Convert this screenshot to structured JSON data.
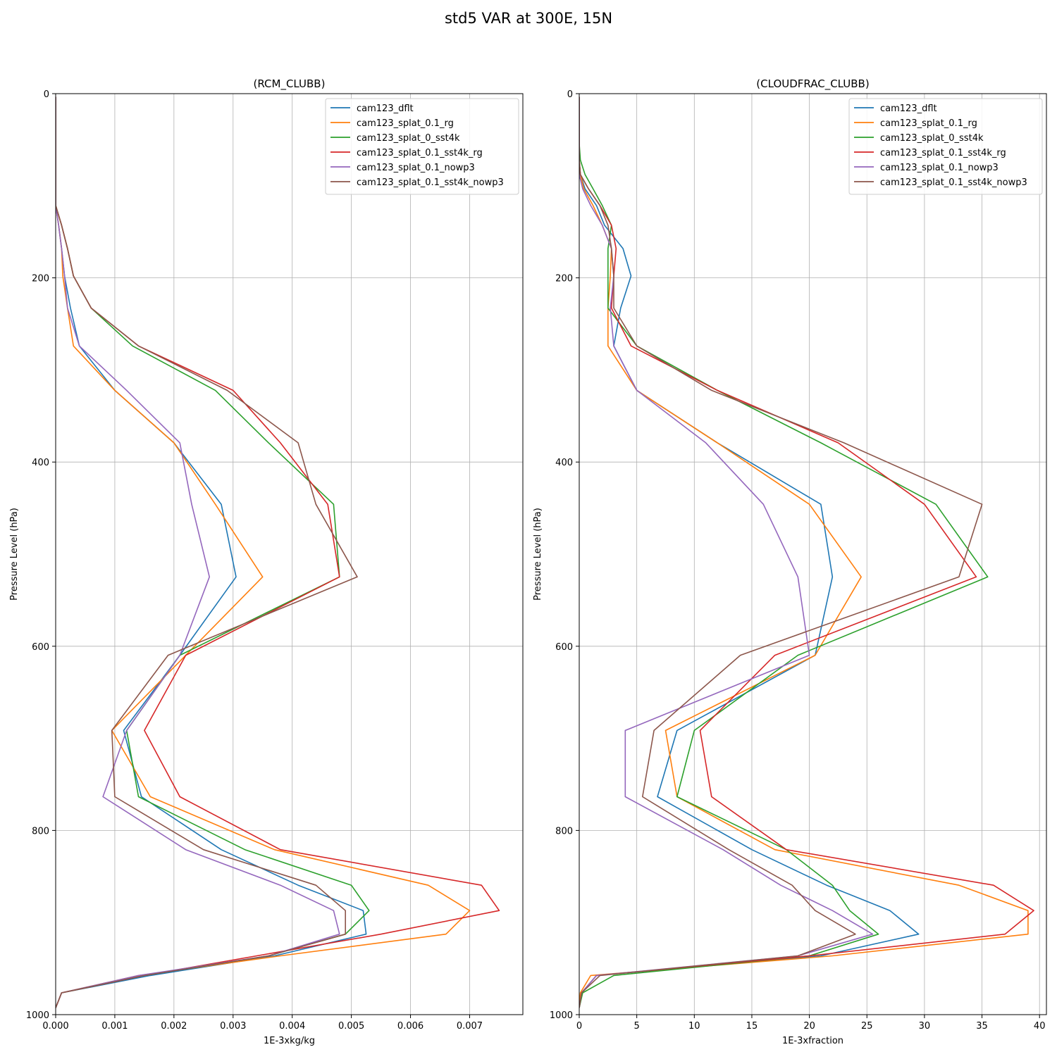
{
  "figure": {
    "title": "std5 VAR at 300E, 15N"
  },
  "colors": [
    "#1f77b4",
    "#ff7f0e",
    "#2ca02c",
    "#d62728",
    "#9467bd",
    "#8c564b"
  ],
  "chart_data": [
    {
      "type": "line",
      "title": "(RCM_CLUBB)",
      "xlabel": "1E-3xkg/kg",
      "ylabel": "Pressure Level (hPa)",
      "xlim": [
        0,
        0.0079
      ],
      "ylim": [
        1000,
        0
      ],
      "xticks": [
        0,
        0.001,
        0.002,
        0.003,
        0.004,
        0.005,
        0.006,
        0.007
      ],
      "xtick_labels": [
        "0.000",
        "0.001",
        "0.002",
        "0.003",
        "0.004",
        "0.005",
        "0.006",
        "0.007"
      ],
      "yticks": [
        0,
        200,
        400,
        600,
        800,
        1000
      ],
      "ytick_labels": [
        "0",
        "200",
        "400",
        "600",
        "800",
        "1000"
      ],
      "grid": true,
      "legend": "top-right",
      "pressure_levels": [
        3.6,
        7.6,
        14.4,
        24.6,
        38.3,
        54.6,
        72.0,
        87.8,
        103.3,
        121.5,
        142.9,
        168.2,
        197.9,
        232.8,
        273.9,
        322.2,
        379.1,
        445.9,
        524.7,
        609.8,
        691.4,
        763.4,
        820.9,
        859.5,
        887.0,
        912.6,
        936.2,
        957.5,
        976.3,
        992.6
      ],
      "series": [
        {
          "name": "cam123_dflt",
          "values": [
            0,
            0,
            0,
            0,
            0,
            0,
            0,
            0,
            0,
            0,
            5e-05,
            0.0001,
            0.00015,
            0.00025,
            0.0004,
            0.001,
            0.002,
            0.0028,
            0.00305,
            0.0021,
            0.00115,
            0.00145,
            0.0028,
            0.0041,
            0.0052,
            0.00525,
            0.0037,
            0.0016,
            0.0001,
            0
          ]
        },
        {
          "name": "cam123_splat_0.1_rg",
          "values": [
            0,
            0,
            0,
            0,
            0,
            0,
            0,
            0,
            0,
            0,
            5e-05,
            0.0001,
            0.00012,
            0.0002,
            0.0003,
            0.001,
            0.002,
            0.0027,
            0.0035,
            0.0022,
            0.00095,
            0.0016,
            0.0037,
            0.0063,
            0.007,
            0.0066,
            0.0038,
            0.0014,
            0.0001,
            0
          ]
        },
        {
          "name": "cam123_splat_0_sst4k",
          "values": [
            0,
            0,
            0,
            0,
            0,
            0,
            0,
            0,
            0,
            0,
            0.0001,
            0.0002,
            0.0003,
            0.0006,
            0.0013,
            0.0027,
            0.0036,
            0.0047,
            0.0048,
            0.0021,
            0.0012,
            0.0014,
            0.0032,
            0.005,
            0.0053,
            0.0049,
            0.0036,
            0.0015,
            0.0001,
            0
          ]
        },
        {
          "name": "cam123_splat_0.1_sst4k_rg",
          "values": [
            0,
            0,
            0,
            0,
            0,
            0,
            0,
            0,
            0,
            0,
            0.0001,
            0.0002,
            0.0003,
            0.0006,
            0.0014,
            0.003,
            0.0038,
            0.0046,
            0.0048,
            0.0022,
            0.0015,
            0.0021,
            0.0038,
            0.0072,
            0.0075,
            0.0055,
            0.0034,
            0.0015,
            0.0001,
            0
          ]
        },
        {
          "name": "cam123_splat_0.1_nowp3",
          "values": [
            0,
            0,
            0,
            0,
            0,
            0,
            0,
            0,
            0,
            0,
            5e-05,
            0.0001,
            0.00015,
            0.0002,
            0.0004,
            0.0012,
            0.0021,
            0.0023,
            0.0026,
            0.0021,
            0.0012,
            0.0008,
            0.0022,
            0.0038,
            0.0047,
            0.0048,
            0.0036,
            0.0014,
            0.0001,
            0
          ]
        },
        {
          "name": "cam123_splat_0.1_sst4k_nowp3",
          "values": [
            0,
            0,
            0,
            0,
            0,
            0,
            0,
            0,
            0,
            0,
            0.0001,
            0.0002,
            0.0003,
            0.0006,
            0.0014,
            0.0029,
            0.0041,
            0.0044,
            0.0051,
            0.0019,
            0.00095,
            0.001,
            0.0025,
            0.0044,
            0.0049,
            0.0049,
            0.0036,
            0.0015,
            0.0001,
            0
          ]
        }
      ]
    },
    {
      "type": "line",
      "title": "(CLOUDFRAC_CLUBB)",
      "xlabel": "1E-3xfraction",
      "ylabel": "Pressure Level (hPa)",
      "xlim": [
        0,
        40.6
      ],
      "ylim": [
        1000,
        0
      ],
      "xticks": [
        0,
        5,
        10,
        15,
        20,
        25,
        30,
        35,
        40
      ],
      "xtick_labels": [
        "0",
        "5",
        "10",
        "15",
        "20",
        "25",
        "30",
        "35",
        "40"
      ],
      "yticks": [
        0,
        200,
        400,
        600,
        800,
        1000
      ],
      "ytick_labels": [
        "0",
        "200",
        "400",
        "600",
        "800",
        "1000"
      ],
      "grid": true,
      "legend": "top-right",
      "pressure_levels": [
        3.6,
        7.6,
        14.4,
        24.6,
        38.3,
        54.6,
        72.0,
        87.8,
        103.3,
        121.5,
        142.9,
        168.2,
        197.9,
        232.8,
        273.9,
        322.2,
        379.1,
        445.9,
        524.7,
        609.8,
        691.4,
        763.4,
        820.9,
        859.5,
        887.0,
        912.6,
        936.2,
        957.5,
        976.3,
        992.6
      ],
      "series": [
        {
          "name": "cam123_dflt",
          "values": [
            0,
            0,
            0,
            0,
            0,
            0,
            0,
            0.1,
            0.5,
            1.5,
            2.2,
            3.8,
            4.5,
            3.6,
            3.0,
            5.0,
            12.0,
            21.0,
            22.0,
            20.5,
            8.5,
            6.8,
            15.0,
            21.5,
            27.0,
            29.5,
            21.0,
            1.5,
            0.2,
            0
          ]
        },
        {
          "name": "cam123_splat_0.1_rg",
          "values": [
            0,
            0,
            0,
            0,
            0,
            0,
            0,
            0.1,
            0.4,
            1.2,
            2.0,
            2.8,
            2.7,
            2.5,
            2.5,
            5.0,
            12.0,
            20.0,
            24.5,
            20.5,
            7.5,
            8.5,
            17.0,
            33.0,
            39.0,
            39.0,
            22.0,
            1.0,
            0.1,
            0
          ]
        },
        {
          "name": "cam123_splat_0_sst4k",
          "values": [
            0,
            0,
            0,
            0,
            0,
            0,
            0.1,
            0.5,
            1.2,
            2.0,
            2.8,
            2.5,
            2.5,
            2.5,
            5.0,
            12.0,
            21.0,
            31.0,
            35.5,
            19.0,
            10.0,
            8.5,
            18.0,
            22.0,
            23.5,
            26.0,
            20.0,
            3.0,
            0.3,
            0
          ]
        },
        {
          "name": "cam123_splat_0.1_sst4k_rg",
          "values": [
            0,
            0,
            0,
            0,
            0,
            0,
            0,
            0.1,
            0.8,
            1.8,
            2.8,
            3.2,
            3.0,
            2.8,
            4.5,
            12.0,
            22.5,
            30.0,
            34.5,
            17.0,
            10.5,
            11.5,
            18.0,
            36.0,
            39.5,
            37.0,
            20.0,
            1.5,
            0.2,
            0
          ]
        },
        {
          "name": "cam123_splat_0.1_nowp3",
          "values": [
            0,
            0,
            0,
            0,
            0,
            0,
            0,
            0,
            0.3,
            1.0,
            2.0,
            2.8,
            3.0,
            2.7,
            3.0,
            5.0,
            11.0,
            16.0,
            19.0,
            20.0,
            4.0,
            4.0,
            12.5,
            17.5,
            22.0,
            25.5,
            19.0,
            1.5,
            0.2,
            0
          ]
        },
        {
          "name": "cam123_splat_0.1_sst4k_nowp3",
          "values": [
            0,
            0,
            0,
            0,
            0,
            0,
            0,
            0.1,
            0.8,
            1.8,
            2.5,
            2.8,
            3.0,
            3.0,
            5.0,
            11.5,
            23.0,
            35.0,
            33.0,
            14.0,
            6.5,
            5.5,
            13.0,
            18.5,
            20.5,
            24.0,
            19.0,
            1.8,
            0.2,
            0
          ]
        }
      ]
    }
  ]
}
